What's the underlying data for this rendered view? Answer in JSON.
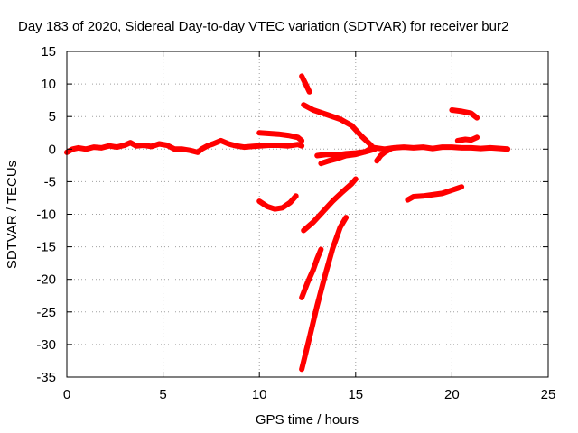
{
  "chart_data": {
    "type": "scatter",
    "title": "Day 183 of 2020, Sidereal Day-to-day VTEC variation (SDTVAR) for receiver bur2",
    "xlabel": "GPS time / hours",
    "ylabel": "SDTVAR / TECUs",
    "xlim": [
      0,
      25
    ],
    "ylim": [
      -35,
      15
    ],
    "xticks": [
      0,
      5,
      10,
      15,
      20,
      25
    ],
    "yticks": [
      -35,
      -30,
      -25,
      -20,
      -15,
      -10,
      -5,
      0,
      5,
      10,
      15
    ],
    "grid": true,
    "color": "#ff0000",
    "series": [
      {
        "x": [
          0.0,
          0.3,
          0.6,
          1.0,
          1.4,
          1.8,
          2.2,
          2.6,
          3.0,
          3.3,
          3.6,
          4.0,
          4.4,
          4.8,
          5.2,
          5.6,
          6.0,
          6.4,
          6.8,
          7.0,
          7.3,
          7.6,
          8.0,
          8.4,
          8.8,
          9.2,
          9.6,
          10.0,
          10.5,
          11.0,
          11.5,
          12.0,
          12.2
        ],
        "y": [
          -0.5,
          0.0,
          0.2,
          0.0,
          0.3,
          0.2,
          0.5,
          0.3,
          0.6,
          1.0,
          0.5,
          0.6,
          0.4,
          0.8,
          0.6,
          0.0,
          0.0,
          -0.2,
          -0.5,
          0.0,
          0.5,
          0.8,
          1.3,
          0.8,
          0.5,
          0.3,
          0.4,
          0.5,
          0.6,
          0.6,
          0.5,
          0.7,
          0.5
        ]
      },
      {
        "x": [
          10.0,
          10.5,
          11.0,
          11.5,
          12.0,
          12.2
        ],
        "y": [
          2.5,
          2.4,
          2.3,
          2.1,
          1.8,
          1.3
        ]
      },
      {
        "x": [
          10.0,
          10.4,
          10.8,
          11.2,
          11.6,
          11.9
        ],
        "y": [
          -8.0,
          -8.8,
          -9.2,
          -9.0,
          -8.2,
          -7.2
        ]
      },
      {
        "x": [
          12.2,
          12.4,
          12.6
        ],
        "y": [
          11.2,
          10.0,
          8.8
        ]
      },
      {
        "x": [
          12.3,
          12.8,
          13.5,
          14.2,
          14.8,
          15.3,
          15.8
        ],
        "y": [
          6.8,
          6.0,
          5.3,
          4.6,
          3.6,
          2.0,
          0.6
        ]
      },
      {
        "x": [
          12.3,
          12.8,
          13.3,
          13.8,
          14.3,
          14.8,
          15.0
        ],
        "y": [
          -12.5,
          -11.2,
          -9.6,
          -8.0,
          -6.6,
          -5.3,
          -4.6
        ]
      },
      {
        "x": [
          12.2,
          12.5,
          12.8,
          13.0,
          13.2
        ],
        "y": [
          -22.8,
          -20.5,
          -18.5,
          -16.8,
          -15.4
        ]
      },
      {
        "x": [
          12.2,
          12.6,
          13.0,
          13.4,
          13.8,
          14.2,
          14.5
        ],
        "y": [
          -33.8,
          -29.0,
          -24.0,
          -19.5,
          -15.3,
          -12.0,
          -10.5
        ]
      },
      {
        "x": [
          13.0,
          13.5,
          14.0,
          14.5,
          15.0,
          15.5,
          15.9
        ],
        "y": [
          -1.0,
          -0.8,
          -0.9,
          -0.7,
          -0.6,
          -0.4,
          0.3
        ]
      },
      {
        "x": [
          13.2,
          13.6,
          14.0,
          14.5,
          15.0,
          15.5,
          16.0
        ],
        "y": [
          -2.2,
          -1.8,
          -1.5,
          -1.0,
          -0.8,
          -0.4,
          0.0
        ]
      },
      {
        "x": [
          16.0,
          16.5,
          17.0,
          17.5,
          18.0,
          18.5,
          19.0,
          19.5,
          20.0,
          20.5,
          21.0,
          21.5,
          22.0,
          22.5,
          22.9
        ],
        "y": [
          0.2,
          0.0,
          0.2,
          0.3,
          0.2,
          0.3,
          0.1,
          0.3,
          0.3,
          0.2,
          0.2,
          0.1,
          0.2,
          0.1,
          0.0
        ]
      },
      {
        "x": [
          16.1,
          16.3,
          16.5,
          16.8
        ],
        "y": [
          -1.8,
          -1.0,
          -0.5,
          0.0
        ]
      },
      {
        "x": [
          17.7,
          18.0,
          18.5,
          19.0,
          19.5,
          20.0,
          20.5
        ],
        "y": [
          -7.8,
          -7.3,
          -7.2,
          -7.0,
          -6.8,
          -6.3,
          -5.8
        ]
      },
      {
        "x": [
          20.0,
          20.5,
          21.0,
          21.3
        ],
        "y": [
          6.0,
          5.8,
          5.5,
          4.8
        ]
      },
      {
        "x": [
          20.3,
          20.7,
          21.0,
          21.3
        ],
        "y": [
          1.3,
          1.5,
          1.4,
          1.8
        ]
      }
    ]
  }
}
